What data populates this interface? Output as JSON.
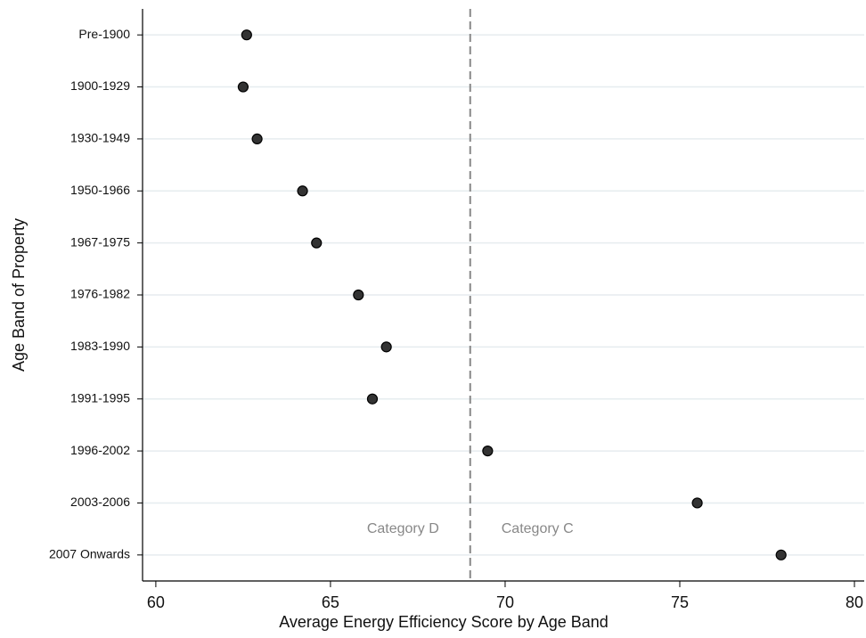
{
  "chart_data": {
    "type": "dot",
    "x_label": "Average Energy Efficiency Score by Age Band",
    "y_label": "Age Band of Property",
    "categories": [
      "Pre-1900",
      "1900-1929",
      "1930-1949",
      "1950-1966",
      "1967-1975",
      "1976-1982",
      "1983-1990",
      "1991-1995",
      "1996-2002",
      "2003-2006",
      "2007 Onwards"
    ],
    "values": [
      62.6,
      62.5,
      62.9,
      64.2,
      64.6,
      65.8,
      66.6,
      66.2,
      69.5,
      75.5,
      77.9
    ],
    "color": "#333333",
    "xlim": [
      59.62,
      80.28
    ],
    "xticks": [
      60,
      65,
      70,
      75,
      80
    ],
    "grid": true,
    "reference_line": 69,
    "annotations": [
      "Category D",
      "Category C"
    ]
  }
}
